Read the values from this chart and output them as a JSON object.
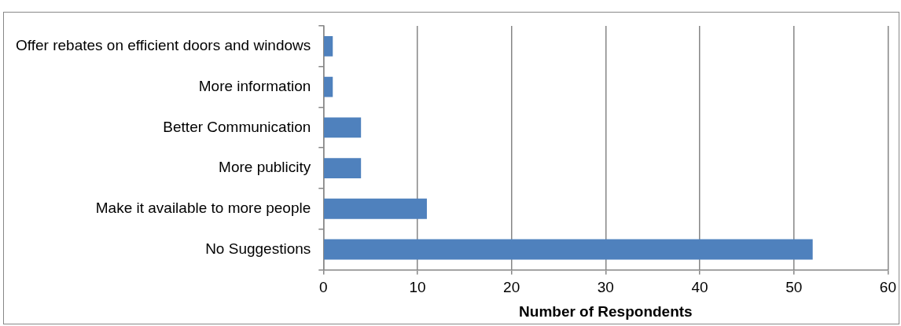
{
  "chart_data": {
    "type": "bar",
    "orientation": "horizontal",
    "categories": [
      "Offer rebates on efficient doors and windows",
      "More information",
      "Better Communication",
      "More publicity",
      "Make it available to more people",
      "No Suggestions"
    ],
    "values": [
      1,
      1,
      4,
      4,
      11,
      52
    ],
    "color": "#4f81bd",
    "xlim": [
      0,
      60
    ],
    "xticks": [
      0,
      10,
      20,
      30,
      40,
      50,
      60
    ],
    "xlabel": "Number of Respondents",
    "grid": "x",
    "legend": false
  }
}
